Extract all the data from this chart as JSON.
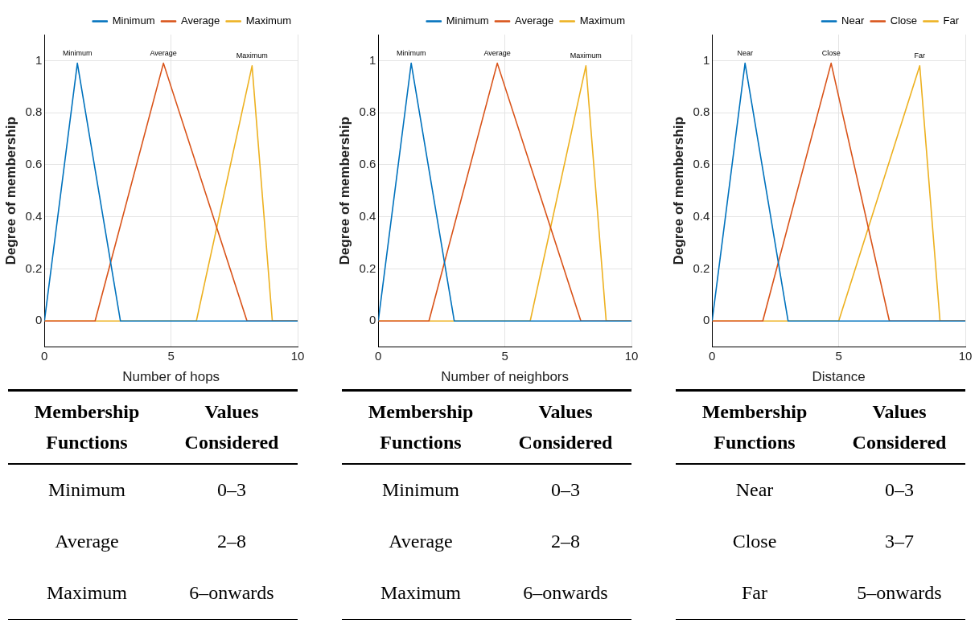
{
  "chart_data": [
    {
      "type": "line",
      "xlabel": "Number of hops",
      "ylabel": "Degree of membership",
      "xlim": [
        0,
        10
      ],
      "xticks": [
        0,
        5,
        10
      ],
      "ylim": [
        -0.1,
        1.1
      ],
      "yticks": [
        0,
        0.2,
        0.4,
        0.6,
        0.8,
        1
      ],
      "grid": true,
      "legend": "top right",
      "marker": "none",
      "line_style": "solid",
      "series": [
        {
          "name": "Minimum",
          "color": "#0072bd",
          "x": [
            0,
            1.3,
            3,
            10
          ],
          "values": [
            0,
            0.99,
            0,
            0
          ]
        },
        {
          "name": "Average",
          "color": "#d95319",
          "x": [
            0,
            2,
            4.7,
            8,
            10
          ],
          "values": [
            0,
            0,
            0.99,
            0,
            0
          ]
        },
        {
          "name": "Maximum",
          "color": "#edb120",
          "x": [
            0,
            6,
            8.2,
            9,
            10
          ],
          "values": [
            0,
            0,
            0.98,
            0,
            0
          ]
        }
      ],
      "annotations": [
        {
          "text": "Minimum",
          "x": 1.3,
          "y": 0.99
        },
        {
          "text": "Average",
          "x": 4.7,
          "y": 0.99
        },
        {
          "text": "Maximum",
          "x": 8.2,
          "y": 0.98
        },
        "Membership Functions",
        "Values Considered",
        "Minimum",
        "0–3",
        "Average",
        "2–8",
        "Maximum",
        "6–onwards"
      ]
    },
    {
      "type": "line",
      "xlabel": "Number of neighbors",
      "ylabel": "Degree of membership",
      "xlim": [
        0,
        10
      ],
      "xticks": [
        0,
        5,
        10
      ],
      "ylim": [
        -0.1,
        1.1
      ],
      "yticks": [
        0,
        0.2,
        0.4,
        0.6,
        0.8,
        1
      ],
      "grid": true,
      "legend": "top right",
      "marker": "none",
      "line_style": "solid",
      "series": [
        {
          "name": "Minimum",
          "color": "#0072bd",
          "x": [
            0,
            1.3,
            3,
            10
          ],
          "values": [
            0,
            0.99,
            0,
            0
          ]
        },
        {
          "name": "Average",
          "color": "#d95319",
          "x": [
            0,
            2,
            4.7,
            8,
            10
          ],
          "values": [
            0,
            0,
            0.99,
            0,
            0
          ]
        },
        {
          "name": "Maximum",
          "color": "#edb120",
          "x": [
            0,
            6,
            8.2,
            9,
            10
          ],
          "values": [
            0,
            0,
            0.98,
            0,
            0
          ]
        }
      ],
      "annotations": [
        {
          "text": "Minimum",
          "x": 1.3,
          "y": 0.99
        },
        {
          "text": "Average",
          "x": 4.7,
          "y": 0.99
        },
        {
          "text": "Maximum",
          "x": 8.2,
          "y": 0.98
        },
        "Membership Functions",
        "Values Considered",
        "Minimum",
        "0–3",
        "Average",
        "2–8",
        "Maximum",
        "6–onwards"
      ]
    },
    {
      "type": "line",
      "xlabel": "Distance",
      "ylabel": "Degree of membership",
      "xlim": [
        0,
        10
      ],
      "xticks": [
        0,
        5,
        10
      ],
      "ylim": [
        -0.1,
        1.1
      ],
      "yticks": [
        0,
        0.2,
        0.4,
        0.6,
        0.8,
        1
      ],
      "grid": true,
      "legend": "top right",
      "marker": "none",
      "line_style": "solid",
      "series": [
        {
          "name": "Near",
          "color": "#0072bd",
          "x": [
            0,
            1.3,
            3,
            10
          ],
          "values": [
            0,
            0.99,
            0,
            0
          ]
        },
        {
          "name": "Close",
          "color": "#d95319",
          "x": [
            0,
            2,
            4.7,
            7,
            10
          ],
          "values": [
            0,
            0,
            0.99,
            0,
            0
          ]
        },
        {
          "name": "Far",
          "color": "#edb120",
          "x": [
            0,
            5,
            8.2,
            9,
            10
          ],
          "values": [
            0,
            0,
            0.98,
            0,
            0
          ]
        }
      ],
      "annotations": [
        {
          "text": "Near",
          "x": 1.3,
          "y": 0.99
        },
        {
          "text": "Close",
          "x": 4.7,
          "y": 0.99
        },
        {
          "text": "Far",
          "x": 8.2,
          "y": 0.98
        },
        "Membership Functions",
        "Values Considered",
        "Near",
        "0–3",
        "Close",
        "3–7",
        "Far",
        "5–onwards"
      ]
    }
  ]
}
